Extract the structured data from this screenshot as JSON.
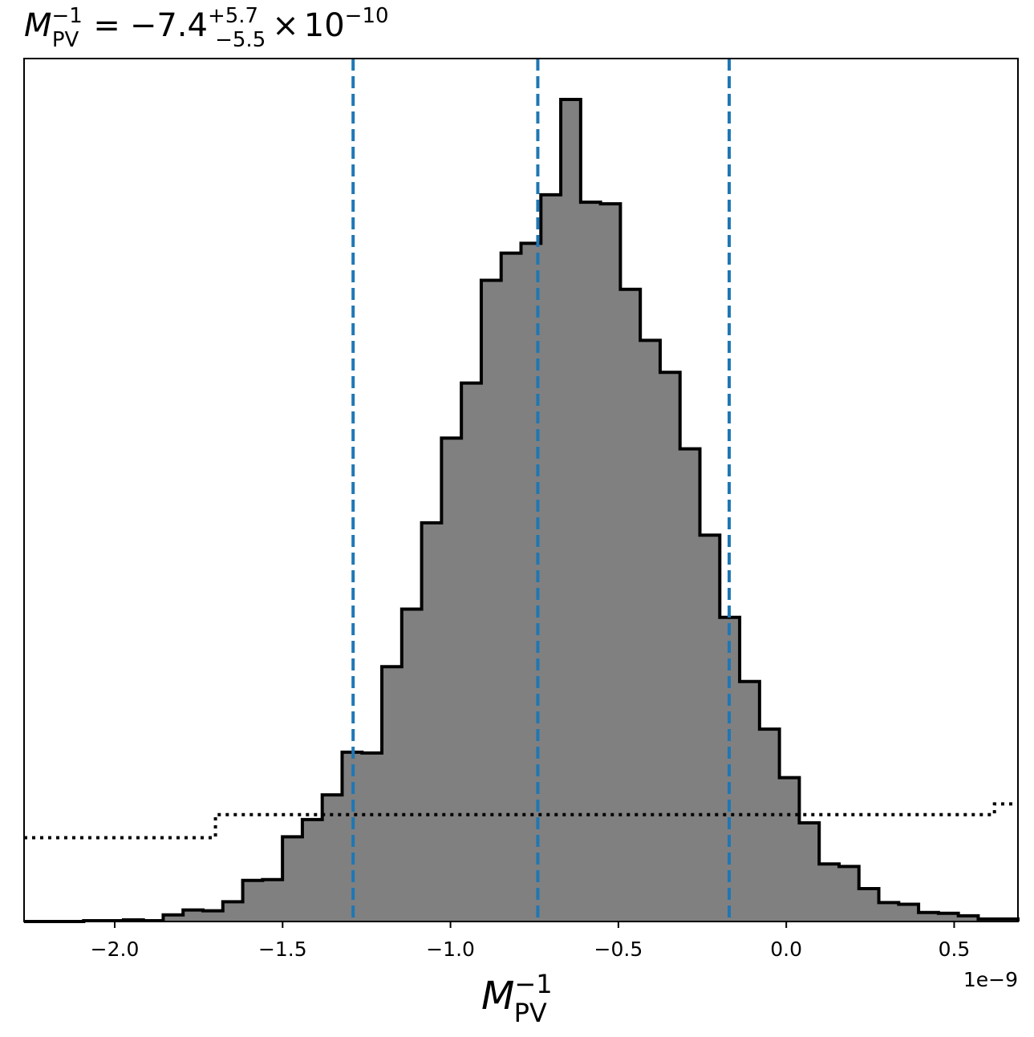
{
  "chart_data": {
    "type": "bar",
    "title": {
      "lhs_symbol": "M",
      "lhs_subscript": "PV",
      "lhs_superscript": "−1",
      "equals": "=",
      "value": "−7.4",
      "upper_err": "+5.7",
      "lower_err": "−5.5",
      "times": "×",
      "mantissa_base": "10",
      "exponent": "−10"
    },
    "xlabel": {
      "symbol": "M",
      "subscript": "PV",
      "superscript": "−1"
    },
    "x_offset_label": "1e−9",
    "xlim": [
      -2.27,
      0.69
    ],
    "ylim": [
      0,
      1.0
    ],
    "x_ticks": [
      {
        "value": -2.0,
        "label": "−2.0"
      },
      {
        "value": -1.5,
        "label": "−1.5"
      },
      {
        "value": -1.0,
        "label": "−1.0"
      },
      {
        "value": -0.5,
        "label": "−0.5"
      },
      {
        "value": 0.0,
        "label": "0.0"
      },
      {
        "value": 0.5,
        "label": "0.5"
      }
    ],
    "histogram": {
      "fill_color": "#808080",
      "edge_color": "#000000",
      "bin_start": -2.27,
      "bin_width": 0.0592,
      "heights": [
        0.0,
        0.0,
        0.0,
        0.001,
        0.001,
        0.002,
        0.001,
        0.008,
        0.014,
        0.013,
        0.024,
        0.05,
        0.051,
        0.103,
        0.124,
        0.154,
        0.206,
        0.205,
        0.31,
        0.38,
        0.485,
        0.588,
        0.655,
        0.78,
        0.813,
        0.825,
        0.884,
        1.0,
        0.875,
        0.873,
        0.769,
        0.707,
        0.668,
        0.575,
        0.47,
        0.37,
        0.292,
        0.234,
        0.175,
        0.12,
        0.07,
        0.067,
        0.04,
        0.023,
        0.021,
        0.011,
        0.01,
        0.007,
        0.003,
        0.003,
        0.002
      ]
    },
    "prior": {
      "line_color": "#000000",
      "line_style": "dotted",
      "steps": [
        {
          "x0": -2.27,
          "x1": -1.7,
          "y": 0.102
        },
        {
          "x0": -1.7,
          "x1": 0.62,
          "y": 0.13
        },
        {
          "x0": 0.62,
          "x1": 0.69,
          "y": 0.143
        }
      ]
    },
    "quantile_lines": {
      "color": "#1f77b4",
      "line_style": "dashed",
      "values": [
        -1.29,
        -0.74,
        -0.17
      ]
    },
    "grid": false
  }
}
